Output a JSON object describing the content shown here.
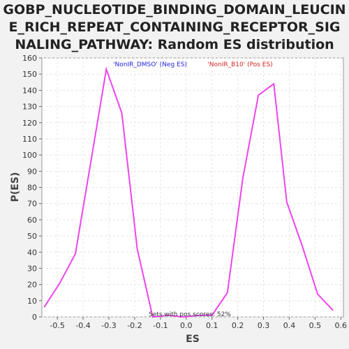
{
  "chart_data": {
    "type": "line",
    "title_lines": [
      "GOBP_NUCLEOTIDE_BINDING_DOMAIN_LEUCIN",
      "E_RICH_REPEAT_CONTAINING_RECEPTOR_SIG",
      "NALING_PATHWAY: Random ES distribution"
    ],
    "xlabel": "ES",
    "ylabel": "P(ES)",
    "xlim": [
      -0.56,
      0.61
    ],
    "ylim": [
      0,
      160
    ],
    "xticks": [
      -0.5,
      -0.4,
      -0.3,
      -0.2,
      -0.1,
      0.0,
      0.1,
      0.2,
      0.3,
      0.4,
      0.5,
      0.6
    ],
    "xtick_labels": [
      "-0.5",
      "-0.4",
      "-0.3",
      "-0.2",
      "-0.1",
      "0.0",
      "0.1",
      "0.2",
      "0.3",
      "0.4",
      "0.5",
      "0.6"
    ],
    "yticks": [
      0,
      10,
      20,
      30,
      40,
      50,
      60,
      70,
      80,
      90,
      100,
      110,
      120,
      130,
      140,
      150,
      160
    ],
    "ytick_labels": [
      "0",
      "10",
      "20",
      "30",
      "40",
      "50",
      "60",
      "70",
      "80",
      "90",
      "100",
      "110",
      "120",
      "130",
      "140",
      "150",
      "160"
    ],
    "grid": true,
    "line_color": "#ee44ee",
    "series": [
      {
        "x": [
          -0.551,
          -0.49,
          -0.43,
          -0.37,
          -0.31,
          -0.25,
          -0.19,
          -0.13,
          -0.07,
          -0.01,
          0.05,
          0.1,
          0.16,
          0.22,
          0.28,
          0.34,
          0.39,
          0.45,
          0.51,
          0.57
        ],
        "y": [
          6,
          21,
          39,
          96,
          153,
          126,
          42,
          0,
          1,
          0,
          1,
          1,
          15,
          86,
          137,
          144,
          71,
          44,
          14,
          4
        ]
      }
    ],
    "annotations": {
      "neg_label": "'NonIR_DMSO' (Neg ES)",
      "neg_color": "#2222dd",
      "pos_label": "'NonIR_B10' (Pos ES)",
      "pos_color": "#dd2222",
      "bottom_note": "Sets with pos scores: 52%"
    }
  }
}
